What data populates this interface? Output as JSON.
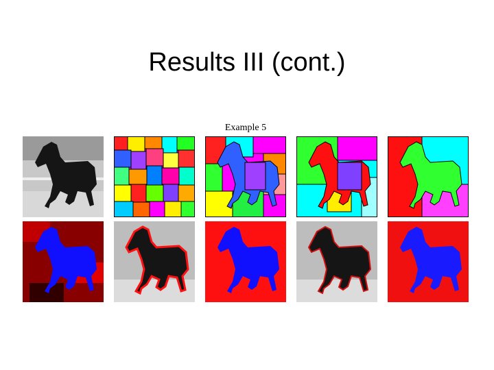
{
  "slide": {
    "title": "Results III (cont.)",
    "figure": {
      "caption": "Example 5"
    }
  }
}
